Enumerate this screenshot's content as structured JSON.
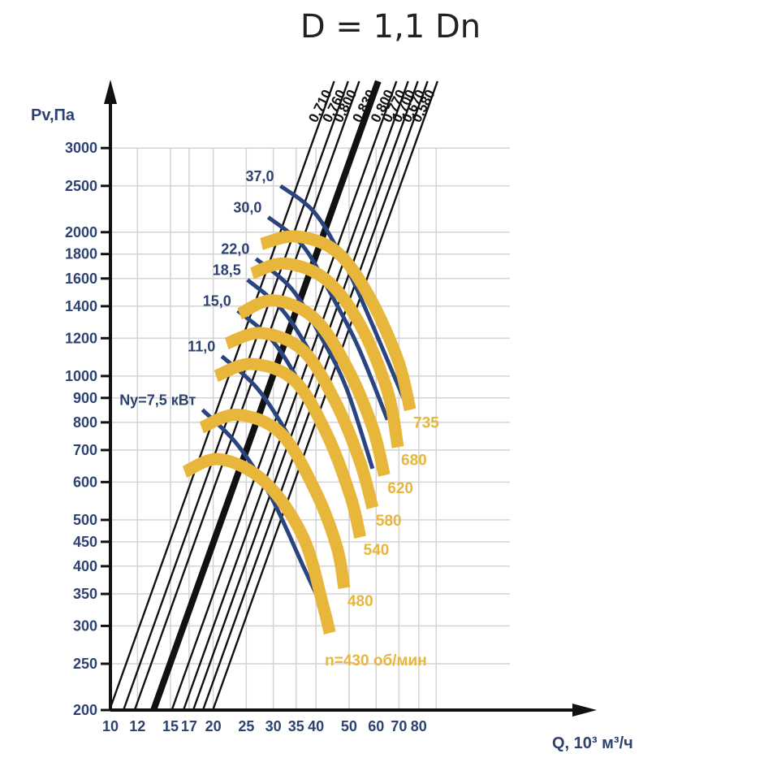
{
  "title": "D = 1,1 Dn",
  "chart_data": {
    "type": "line",
    "title": "D = 1,1 Dn",
    "xlabel": "Q, 10³ м³/ч",
    "ylabel": "Pv,Па",
    "x_scale": "log",
    "y_scale": "log",
    "xlim": [
      10,
      90
    ],
    "ylim": [
      200,
      3000
    ],
    "grid": true,
    "x_ticks": [
      "10",
      "12",
      "15",
      "17",
      "20",
      "25",
      "30",
      "35",
      "40",
      "50",
      "60",
      "70",
      "80"
    ],
    "y_ticks": [
      "200",
      "250",
      "300",
      "350",
      "400",
      "450",
      "500",
      "600",
      "700",
      "800",
      "900",
      "1000",
      "1200",
      "1400",
      "1600",
      "1800",
      "2000",
      "2500",
      "3000"
    ],
    "colors": {
      "axis": "#111111",
      "grid": "#d4d4d4",
      "power": "#2a4480",
      "speed": "#e8b63a",
      "efficiency": "#111111",
      "label_blue": "#2d4270"
    },
    "efficiency_lines": [
      {
        "label": "0,710",
        "y_at_3000": 38.5,
        "bold": false
      },
      {
        "label": "0,760",
        "y_at_3000": 42.3,
        "bold": false
      },
      {
        "label": "0,800",
        "y_at_3000": 45.6,
        "bold": false
      },
      {
        "label": "0,830",
        "y_at_3000": 51.8,
        "bold": true
      },
      {
        "label": "0,800",
        "y_at_3000": 58.6,
        "bold": false
      },
      {
        "label": "0,770",
        "y_at_3000": 63.4,
        "bold": false
      },
      {
        "label": "0,700",
        "y_at_3000": 67.7,
        "bold": false
      },
      {
        "label": "0,670",
        "y_at_3000": 72.3,
        "bold": false
      },
      {
        "label": "0,580",
        "y_at_3000": 77.3,
        "bold": false
      }
    ],
    "power_curves": [
      {
        "label": "Ny=7,5 кВт",
        "points": [
          [
            18.6,
            850
          ],
          [
            23.5,
            720
          ],
          [
            29.5,
            560
          ],
          [
            36.7,
            400
          ],
          [
            44.3,
            300
          ]
        ]
      },
      {
        "label": "11,0",
        "points": [
          [
            21.2,
            1100
          ],
          [
            27,
            940
          ],
          [
            33.6,
            740
          ],
          [
            40.8,
            560
          ],
          [
            48.6,
            380
          ]
        ]
      },
      {
        "label": "15,0",
        "points": [
          [
            23.6,
            1370
          ],
          [
            30,
            1180
          ],
          [
            37.2,
            920
          ],
          [
            44.5,
            700
          ],
          [
            51.2,
            520
          ]
        ]
      },
      {
        "label": "18,5",
        "points": [
          [
            25.2,
            1590
          ],
          [
            32,
            1370
          ],
          [
            39.5,
            1080
          ],
          [
            46.8,
            820
          ],
          [
            54.7,
            610
          ]
        ]
      },
      {
        "label": "22,0",
        "points": [
          [
            26.7,
            1760
          ],
          [
            34,
            1520
          ],
          [
            41.6,
            1200
          ],
          [
            49.2,
            940
          ],
          [
            58.6,
            640
          ]
        ]
      },
      {
        "label": "30,0",
        "points": [
          [
            29,
            2150
          ],
          [
            36.7,
            1870
          ],
          [
            44.8,
            1460
          ],
          [
            53.2,
            1150
          ],
          [
            64.8,
            810
          ]
        ]
      },
      {
        "label": "37,0",
        "points": [
          [
            31.5,
            2500
          ],
          [
            39.6,
            2200
          ],
          [
            48.2,
            1740
          ],
          [
            57.2,
            1330
          ],
          [
            74.1,
            860
          ]
        ]
      }
    ],
    "speed_curves": [
      {
        "label": "n=430 об/мин",
        "points": [
          [
            16.5,
            630
          ],
          [
            20.9,
            670
          ],
          [
            28.4,
            600
          ],
          [
            36.7,
            460
          ],
          [
            42,
            330
          ],
          [
            43.9,
            290
          ]
        ]
      },
      {
        "label": "480",
        "points": [
          [
            18.5,
            780
          ],
          [
            23.5,
            830
          ],
          [
            31.5,
            760
          ],
          [
            39.6,
            580
          ],
          [
            46,
            440
          ],
          [
            48.4,
            360
          ]
        ]
      },
      {
        "label": "540",
        "points": [
          [
            20.4,
            1000
          ],
          [
            25.9,
            1060
          ],
          [
            34.5,
            980
          ],
          [
            42.9,
            760
          ],
          [
            50.5,
            560
          ],
          [
            53.9,
            460
          ]
        ]
      },
      {
        "label": "580",
        "points": [
          [
            21.9,
            1170
          ],
          [
            27.7,
            1230
          ],
          [
            36.7,
            1130
          ],
          [
            45.7,
            880
          ],
          [
            53.9,
            660
          ],
          [
            58.6,
            530
          ]
        ]
      },
      {
        "label": "620",
        "points": [
          [
            23.9,
            1350
          ],
          [
            30,
            1440
          ],
          [
            39.6,
            1320
          ],
          [
            49.4,
            1040
          ],
          [
            58.6,
            780
          ],
          [
            63.4,
            620
          ]
        ]
      },
      {
        "label": "680",
        "points": [
          [
            26,
            1640
          ],
          [
            32.5,
            1720
          ],
          [
            42.9,
            1590
          ],
          [
            53.9,
            1280
          ],
          [
            64.8,
            930
          ],
          [
            69.5,
            710
          ]
        ]
      },
      {
        "label": "735",
        "points": [
          [
            27.7,
            1890
          ],
          [
            35,
            1960
          ],
          [
            46,
            1820
          ],
          [
            57.2,
            1470
          ],
          [
            69.5,
            1080
          ],
          [
            75.5,
            850
          ]
        ]
      }
    ],
    "speed_label_suffix": "735"
  },
  "labels": {
    "y_axis": "Pv,Па",
    "x_axis": "Q, 10³ м³/ч"
  }
}
